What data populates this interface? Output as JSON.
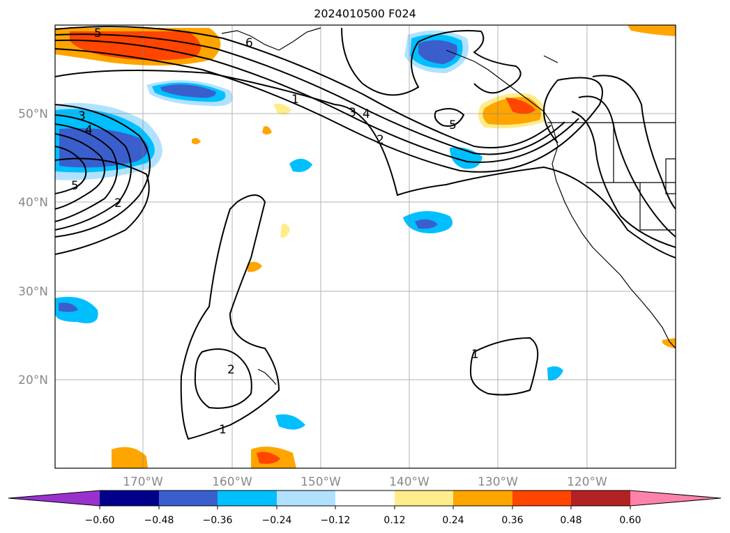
{
  "title": "2024010500 F024",
  "axes": {
    "lat_labels": [
      "20°N",
      "30°N",
      "40°N",
      "50°N"
    ],
    "lon_labels": [
      "170°W",
      "160°W",
      "150°W",
      "140°W",
      "130°W",
      "120°W"
    ],
    "label_color": "#888888"
  },
  "contour_labels": [
    "5",
    "6",
    "1",
    "3",
    "4",
    "5",
    "3",
    "4",
    "2",
    "5",
    "2",
    "2",
    "1",
    "1"
  ],
  "colorbar": {
    "ticks": [
      "−0.60",
      "−0.48",
      "−0.36",
      "−0.24",
      "−0.12",
      "0.12",
      "0.24",
      "0.36",
      "0.48",
      "0.60"
    ],
    "colors": [
      "#9932cc",
      "#00008b",
      "#3a5fcd",
      "#00bfff",
      "#b0e2ff",
      "#ffffff",
      "#ffec8b",
      "#ffa500",
      "#ff4500",
      "#b22222",
      "#ff82ab"
    ]
  }
}
